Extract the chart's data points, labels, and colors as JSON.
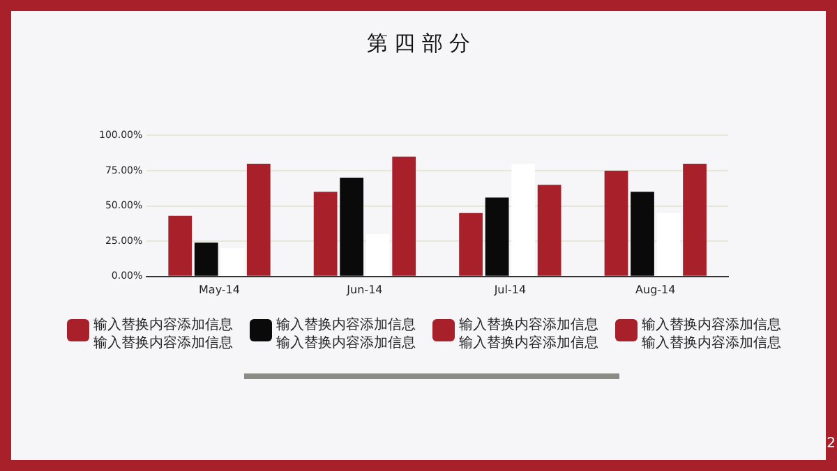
{
  "chart_data": {
    "type": "bar",
    "title": "第 四 部 分",
    "categories": [
      "May-14",
      "Jun-14",
      "Jul-14",
      "Aug-14"
    ],
    "series": [
      {
        "color": "#a8202a",
        "values": [
          43,
          60,
          45,
          75
        ]
      },
      {
        "color": "#0a0a0a",
        "values": [
          24,
          70,
          56,
          60
        ]
      },
      {
        "color": "#ffffff",
        "values": [
          20,
          30,
          80,
          45
        ]
      },
      {
        "color": "#a8202a",
        "values": [
          80,
          85,
          65,
          80
        ]
      }
    ],
    "ylim": [
      0,
      100
    ],
    "yticks": [
      {
        "value": 0,
        "label": "0.00%"
      },
      {
        "value": 25,
        "label": "25.00%"
      },
      {
        "value": 50,
        "label": "50.00%"
      },
      {
        "value": 75,
        "label": "75.00%"
      },
      {
        "value": 100,
        "label": "100.00%"
      }
    ],
    "grid": "y",
    "legend": false,
    "annotations": [
      "输入替换内容添加信息",
      "输入替换内容添加信息",
      "输入替换内容添加信息",
      "输入替换内容添加信息",
      "输入替换内容添加信息",
      "输入替换内容添加信息",
      "输入替换内容添加信息",
      "输入替换内容添加信息",
      "2"
    ]
  }
}
